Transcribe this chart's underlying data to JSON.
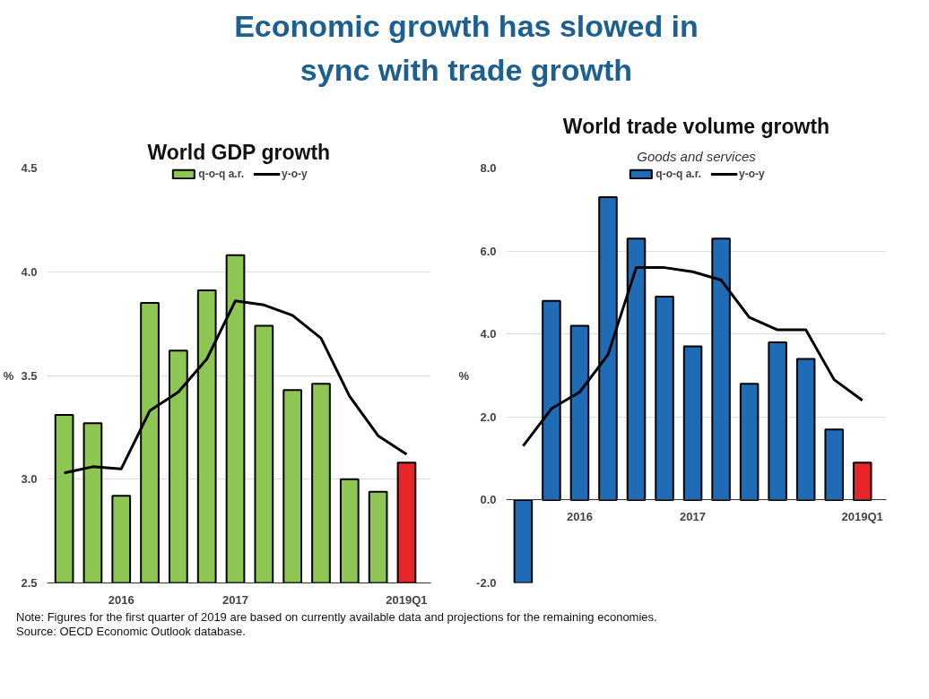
{
  "chart_data": [
    {
      "type": "bar",
      "title": "World GDP growth",
      "ylabel": "%",
      "annotations": [
        "Economic growth has slowed in sync with trade growth"
      ],
      "categories": [
        null,
        null,
        "2016",
        null,
        null,
        null,
        "2017",
        null,
        null,
        null,
        null,
        null,
        "2019Q1"
      ],
      "series": [
        {
          "name": "q-o-q a.r.",
          "colors": [
            "#8dc653",
            "#8dc653",
            "#8dc653",
            "#8dc653",
            "#8dc653",
            "#8dc653",
            "#8dc653",
            "#8dc653",
            "#8dc653",
            "#8dc653",
            "#8dc653",
            "#8dc653",
            "#e8262a"
          ],
          "values": [
            3.31,
            3.27,
            2.92,
            3.85,
            3.62,
            3.91,
            4.08,
            3.74,
            3.43,
            3.46,
            3.0,
            2.94,
            3.08
          ]
        },
        {
          "name": "y-o-y",
          "type": "line",
          "color": "#000000",
          "values": [
            3.03,
            3.06,
            3.05,
            3.33,
            3.42,
            3.58,
            3.86,
            3.84,
            3.79,
            3.68,
            3.4,
            3.21,
            3.12
          ]
        }
      ],
      "ylim": [
        2.5,
        4.5
      ],
      "yticks": [
        {
          "value": 2.5,
          "label": "2.5"
        },
        {
          "value": 3,
          "label": "3.0"
        },
        {
          "value": 3.5,
          "label": "3.5"
        },
        {
          "value": 4,
          "label": "4.0"
        },
        {
          "value": 4.5,
          "label": "4.5"
        }
      ],
      "grid": "y",
      "legend": "top"
    },
    {
      "type": "bar",
      "title": "World trade volume growth",
      "subtitle": "Goods and services",
      "ylabel": "%",
      "annotations": [
        "Note: Figures for the first quarter of 2019 are based on currently available data and projections for the remaining economies.",
        "Source: OECD Economic Outlook database."
      ],
      "categories": [
        null,
        null,
        "2016",
        null,
        null,
        null,
        "2017",
        null,
        null,
        null,
        null,
        null,
        "2019Q1"
      ],
      "series": [
        {
          "name": "q-o-q a.r.",
          "colors": [
            "#1f6bb5",
            "#1f6bb5",
            "#1f6bb5",
            "#1f6bb5",
            "#1f6bb5",
            "#1f6bb5",
            "#1f6bb5",
            "#1f6bb5",
            "#1f6bb5",
            "#1f6bb5",
            "#1f6bb5",
            "#1f6bb5",
            "#e8262a"
          ],
          "values": [
            -2.0,
            4.8,
            4.2,
            7.3,
            6.3,
            4.9,
            3.7,
            6.3,
            2.8,
            3.8,
            3.4,
            1.7,
            0.9
          ]
        },
        {
          "name": "y-o-y",
          "type": "line",
          "color": "#000000",
          "values": [
            1.3,
            2.2,
            2.6,
            3.5,
            5.6,
            5.6,
            5.5,
            5.3,
            4.4,
            4.1,
            4.1,
            2.9,
            2.4
          ]
        }
      ],
      "ylim": [
        -2,
        8
      ],
      "yticks": [
        {
          "value": -2,
          "label": "-2.0"
        },
        {
          "value": 0,
          "label": "0.0"
        },
        {
          "value": 2,
          "label": "2.0"
        },
        {
          "value": 4,
          "label": "4.0"
        },
        {
          "value": 6,
          "label": "6.0"
        },
        {
          "value": 8,
          "label": "8.0"
        }
      ],
      "grid": "y",
      "legend": "top"
    }
  ]
}
